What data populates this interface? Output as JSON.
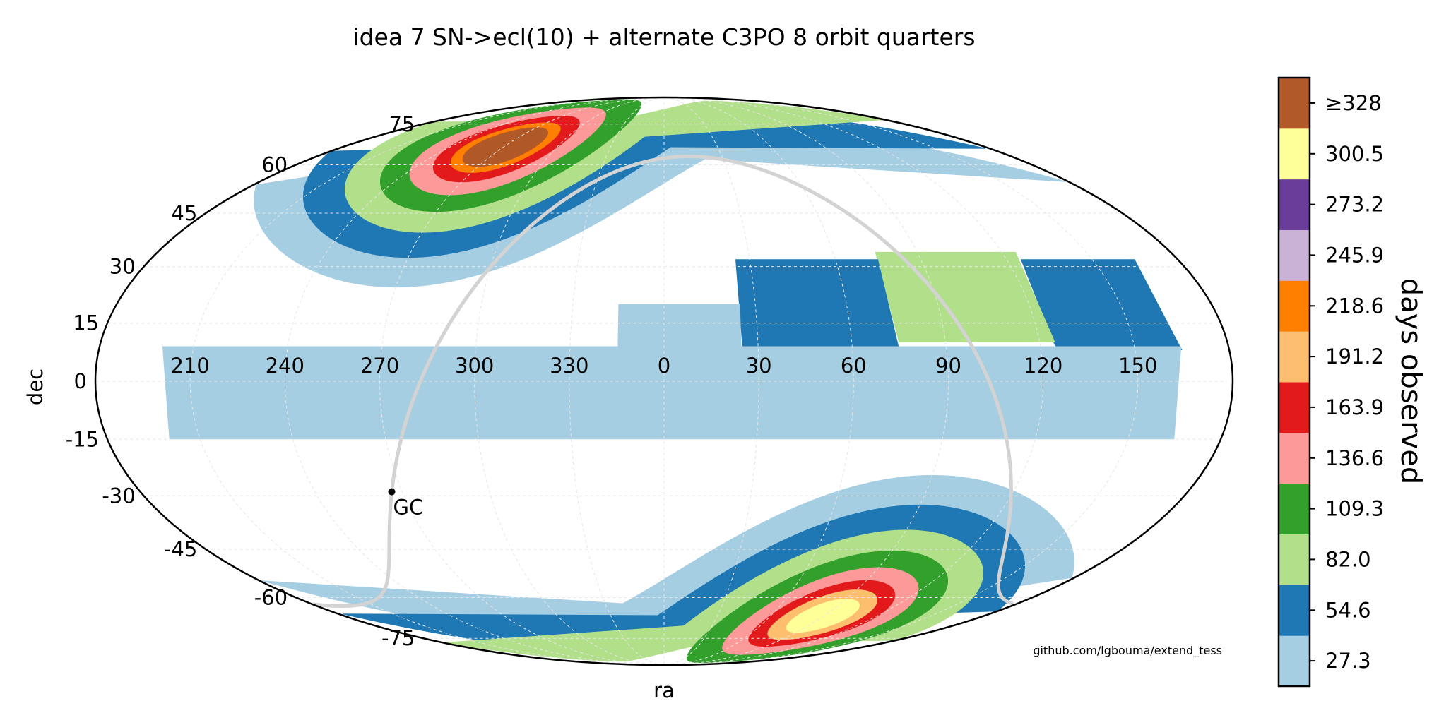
{
  "chart_data": {
    "type": "heatmap",
    "projection": "mollweide",
    "title": "idea 7 SN->ecl(10) + alternate C3PO 8 orbit quarters",
    "xlabel": "ra",
    "ylabel": "dec",
    "ra_ticks": [
      "150",
      "120",
      "90",
      "60",
      "30",
      "0",
      "330",
      "300",
      "270",
      "240",
      "210"
    ],
    "ra_tick_values": [
      150,
      120,
      90,
      60,
      30,
      0,
      330,
      300,
      270,
      240,
      210
    ],
    "dec_ticks": [
      "75",
      "60",
      "45",
      "30",
      "15",
      "0",
      "-15",
      "-30",
      "-45",
      "-60",
      "-75"
    ],
    "dec_tick_values": [
      75,
      60,
      45,
      30,
      15,
      0,
      -15,
      -30,
      -45,
      -60,
      -75
    ],
    "grid": true,
    "annotation": {
      "label": "GC",
      "ra": 266.4,
      "dec": -28.9
    },
    "galactic_plane_color": "#d3d3d3",
    "credit": "github.com/lgbouma/extend_tess",
    "colorbar": {
      "label": "days observed",
      "ticks": [
        "27.3",
        "54.6",
        "82.0",
        "109.3",
        "136.6",
        "163.9",
        "191.2",
        "218.6",
        "245.9",
        "273.2",
        "300.5",
        "≥328"
      ],
      "tick_values": [
        27.3,
        54.6,
        82.0,
        109.3,
        136.6,
        163.9,
        191.2,
        218.6,
        245.9,
        273.2,
        300.5,
        328
      ],
      "colors": [
        "#a6cee3",
        "#1f78b4",
        "#b2df8a",
        "#33a02c",
        "#fb9a99",
        "#e31a1c",
        "#fdbf6f",
        "#ff7f00",
        "#cab2d6",
        "#6a3d9a",
        "#ffff99",
        "#b15928"
      ]
    },
    "regions": [
      {
        "name": "ecliptic-band",
        "bins": [
          {
            "level": 1,
            "ra_from": 165,
            "ra_to": 125,
            "dec_from": 8,
            "dec_to": 32
          },
          {
            "level": 2,
            "ra_from": 125,
            "ra_to": 75,
            "dec_from": 10,
            "dec_to": 34
          },
          {
            "level": 1,
            "ra_from": 75,
            "ra_to": 25,
            "dec_from": 8,
            "dec_to": 32
          },
          {
            "level": 0,
            "ra_from": 25,
            "ra_to": 345,
            "dec_from": -4,
            "dec_to": 20
          },
          {
            "level": 0,
            "ra_from": 200,
            "ra_to": 165,
            "dec_from": -15,
            "dec_to": 9
          }
        ]
      },
      {
        "name": "north-ecliptic-cap",
        "center_ra": 270,
        "center_dec": 66.5,
        "rings": [
          {
            "radius": 42,
            "level": 0
          },
          {
            "radius": 34,
            "level": 1
          },
          {
            "radius": 27,
            "level": 2
          },
          {
            "radius": 21,
            "level": 3
          },
          {
            "radius": 16,
            "level": 4
          },
          {
            "radius": 12,
            "level": 5
          },
          {
            "radius": 9,
            "level": 7
          },
          {
            "radius": 7,
            "level": 11
          }
        ]
      },
      {
        "name": "south-ecliptic-cap",
        "center_ra": 90,
        "center_dec": -66.5,
        "rings": [
          {
            "radius": 42,
            "level": 0
          },
          {
            "radius": 34,
            "level": 1
          },
          {
            "radius": 27,
            "level": 2
          },
          {
            "radius": 21,
            "level": 3
          },
          {
            "radius": 16,
            "level": 4
          },
          {
            "radius": 12,
            "level": 5
          },
          {
            "radius": 9,
            "level": 6
          },
          {
            "radius": 6,
            "level": 10
          }
        ]
      }
    ]
  }
}
